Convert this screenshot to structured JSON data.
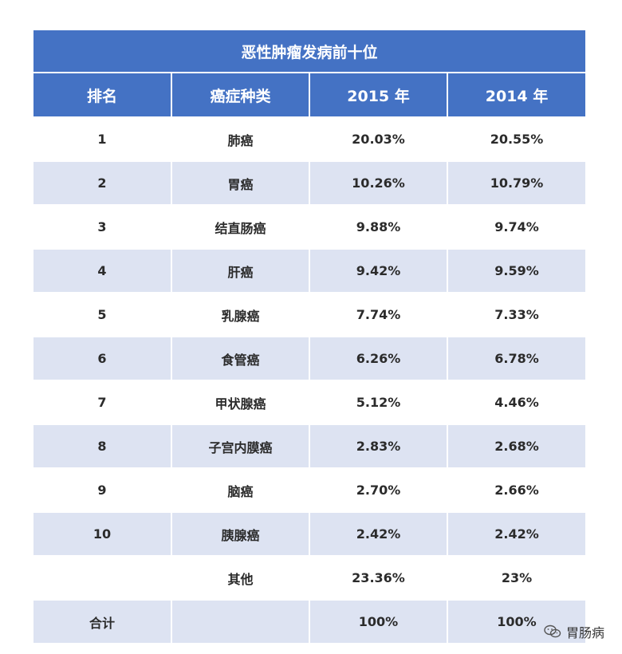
{
  "chart_data": {
    "type": "table",
    "title": "恶性肿瘤发病前十位",
    "columns": [
      "排名",
      "癌症种类",
      "2015 年",
      "2014 年"
    ],
    "rows": [
      {
        "rank": "1",
        "type": "肺癌",
        "y2015": "20.03%",
        "y2014": "20.55%"
      },
      {
        "rank": "2",
        "type": "胃癌",
        "y2015": "10.26%",
        "y2014": "10.79%"
      },
      {
        "rank": "3",
        "type": "结直肠癌",
        "y2015": "9.88%",
        "y2014": "9.74%"
      },
      {
        "rank": "4",
        "type": "肝癌",
        "y2015": "9.42%",
        "y2014": "9.59%"
      },
      {
        "rank": "5",
        "type": "乳腺癌",
        "y2015": "7.74%",
        "y2014": "7.33%"
      },
      {
        "rank": "6",
        "type": "食管癌",
        "y2015": "6.26%",
        "y2014": "6.78%"
      },
      {
        "rank": "7",
        "type": "甲状腺癌",
        "y2015": "5.12%",
        "y2014": "4.46%"
      },
      {
        "rank": "8",
        "type": "子宫内膜癌",
        "y2015": "2.83%",
        "y2014": "2.68%"
      },
      {
        "rank": "9",
        "type": "脑癌",
        "y2015": "2.70%",
        "y2014": "2.66%"
      },
      {
        "rank": "10",
        "type": "胰腺癌",
        "y2015": "2.42%",
        "y2014": "2.42%"
      },
      {
        "rank": "",
        "type": "其他",
        "y2015": "23.36%",
        "y2014": "23%"
      },
      {
        "rank": "合计",
        "type": "",
        "y2015": "100%",
        "y2014": "100%"
      }
    ]
  },
  "colors": {
    "header_bg": "#4472c4",
    "header_text": "#ffffff",
    "stripe_bg": "#dde3f2",
    "body_text": "#2b2b2b"
  },
  "watermark": {
    "text": "胃肠病",
    "icon": "wechat-icon"
  }
}
